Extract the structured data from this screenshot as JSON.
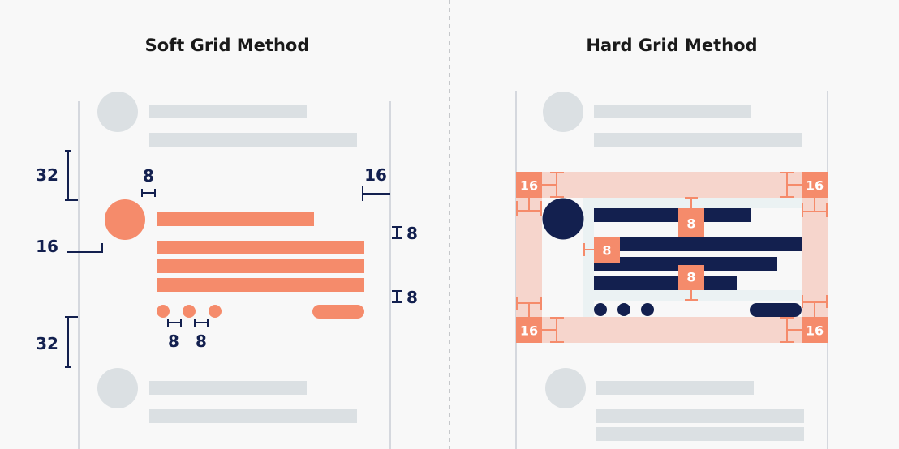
{
  "soft": {
    "title": "Soft Grid Method",
    "labels": {
      "top_gap": "32",
      "avatar_gap": "8",
      "right_margin": "16",
      "left_offset": "16",
      "line_gap_1": "8",
      "line_gap_2": "8",
      "dot_gap_1": "8",
      "dot_gap_2": "8",
      "bottom_gap": "32"
    }
  },
  "hard": {
    "title": "Hard Grid Method",
    "labels": {
      "corner_tl": "16",
      "corner_tr": "16",
      "corner_bl": "16",
      "corner_br": "16",
      "gap_top": "8",
      "gap_left": "8",
      "gap_bottom": "8"
    }
  },
  "colors": {
    "accent": "#f58b6b",
    "accent_light": "#f6d5cc",
    "navy": "#13204f",
    "placeholder": "#dbe0e3"
  }
}
